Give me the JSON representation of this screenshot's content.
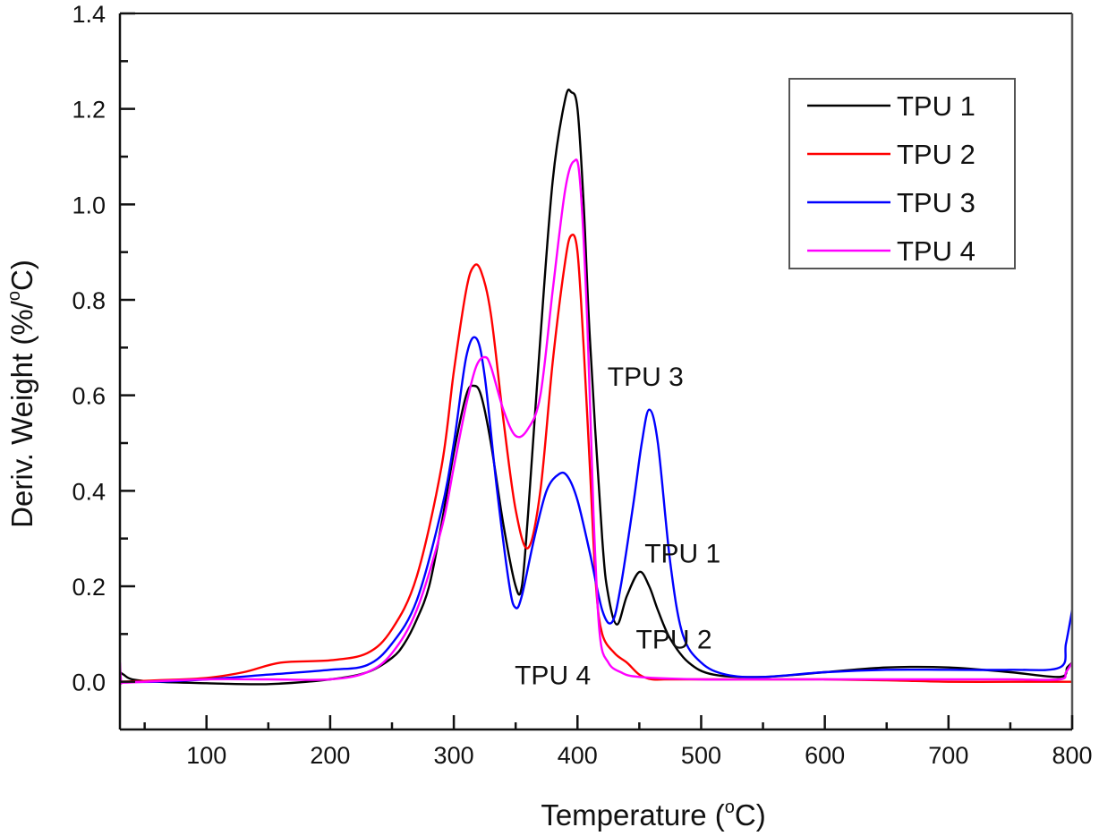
{
  "chart_data": {
    "type": "line",
    "title": "",
    "xlabel": "Temperature (°C)",
    "xlabel_parts": {
      "main": "Temperature (",
      "sup": "o",
      "end": "C)"
    },
    "ylabel": "Deriv. Weight (%/°C)",
    "ylabel_parts": {
      "main": "Deriv. Weight (%/",
      "sup": "o",
      "end": "C)"
    },
    "xlim": [
      30,
      800
    ],
    "ylim": [
      -0.1,
      1.4
    ],
    "xticks": [
      100,
      200,
      300,
      400,
      500,
      600,
      700,
      800
    ],
    "xtick_labels": [
      "100",
      "200",
      "300",
      "400",
      "500",
      "600",
      "700",
      "800"
    ],
    "xminor": [
      50,
      150,
      250,
      350,
      450,
      550,
      650,
      750
    ],
    "yticks": [
      0.0,
      0.2,
      0.4,
      0.6,
      0.8,
      1.0,
      1.2,
      1.4
    ],
    "ytick_labels": [
      "0.0",
      "0.2",
      "0.4",
      "0.6",
      "0.8",
      "1.0",
      "1.2",
      "1.4"
    ],
    "yminor": [
      0.1,
      0.3,
      0.5,
      0.7,
      0.9,
      1.1,
      1.3
    ],
    "grid": false,
    "legend_position": "top-right",
    "series": [
      {
        "name": "TPU 1",
        "color": "#000000",
        "x": [
          30,
          33,
          40,
          60,
          100,
          150,
          200,
          230,
          250,
          260,
          270,
          280,
          290,
          300,
          310,
          316,
          322,
          330,
          340,
          350,
          355,
          360,
          370,
          380,
          390,
          395,
          400,
          405,
          410,
          420,
          425,
          432,
          440,
          450,
          458,
          465,
          475,
          490,
          510,
          550,
          600,
          650,
          700,
          750,
          790,
          796,
          800
        ],
        "y": [
          0.02,
          0.015,
          0.005,
          0.0,
          -0.003,
          -0.005,
          0.005,
          0.02,
          0.05,
          0.08,
          0.13,
          0.2,
          0.33,
          0.48,
          0.6,
          0.62,
          0.6,
          0.5,
          0.33,
          0.2,
          0.2,
          0.35,
          0.72,
          1.05,
          1.22,
          1.235,
          1.2,
          1.0,
          0.72,
          0.3,
          0.18,
          0.12,
          0.18,
          0.23,
          0.2,
          0.15,
          0.09,
          0.04,
          0.015,
          0.01,
          0.02,
          0.03,
          0.03,
          0.02,
          0.01,
          0.03,
          0.04
        ]
      },
      {
        "name": "TPU 2",
        "color": "#ff0000",
        "x": [
          30,
          60,
          100,
          130,
          160,
          200,
          230,
          250,
          270,
          290,
          300,
          310,
          316,
          322,
          330,
          340,
          350,
          360,
          370,
          380,
          390,
          395,
          400,
          405,
          410,
          415,
          420,
          430,
          440,
          450,
          460,
          470,
          500,
          550,
          600,
          650,
          700,
          750,
          800
        ],
        "y": [
          0.0,
          0.003,
          0.008,
          0.02,
          0.04,
          0.045,
          0.06,
          0.11,
          0.22,
          0.45,
          0.65,
          0.82,
          0.87,
          0.86,
          0.77,
          0.55,
          0.36,
          0.28,
          0.4,
          0.67,
          0.88,
          0.935,
          0.9,
          0.7,
          0.45,
          0.2,
          0.1,
          0.06,
          0.04,
          0.015,
          0.005,
          0.005,
          0.005,
          0.005,
          0.005,
          0.003,
          0.0,
          0.0,
          0.0
        ]
      },
      {
        "name": "TPU 3",
        "color": "#0000ff",
        "x": [
          30,
          60,
          100,
          150,
          200,
          230,
          250,
          270,
          290,
          300,
          310,
          318,
          325,
          335,
          345,
          350,
          355,
          365,
          375,
          385,
          392,
          400,
          410,
          420,
          428,
          435,
          445,
          452,
          458,
          465,
          475,
          485,
          500,
          520,
          550,
          600,
          650,
          700,
          750,
          790,
          795,
          800
        ],
        "y": [
          0.0,
          0.0,
          0.005,
          0.015,
          0.025,
          0.035,
          0.08,
          0.17,
          0.36,
          0.5,
          0.68,
          0.72,
          0.64,
          0.4,
          0.2,
          0.155,
          0.18,
          0.3,
          0.4,
          0.435,
          0.43,
          0.38,
          0.27,
          0.15,
          0.125,
          0.2,
          0.37,
          0.5,
          0.57,
          0.5,
          0.25,
          0.1,
          0.04,
          0.015,
          0.01,
          0.02,
          0.025,
          0.025,
          0.025,
          0.03,
          0.08,
          0.15
        ]
      },
      {
        "name": "TPU 4",
        "color": "#ff00ff",
        "x": [
          30,
          31,
          33,
          50,
          100,
          150,
          200,
          230,
          250,
          270,
          290,
          300,
          310,
          318,
          325,
          330,
          340,
          350,
          360,
          370,
          380,
          390,
          397,
          402,
          408,
          413,
          418,
          425,
          435,
          450,
          500,
          550,
          600,
          650,
          700,
          750,
          790,
          795,
          800
        ],
        "y": [
          0.04,
          0.0,
          -0.002,
          0.0,
          0.005,
          0.005,
          0.005,
          0.02,
          0.06,
          0.15,
          0.32,
          0.45,
          0.58,
          0.66,
          0.68,
          0.66,
          0.57,
          0.515,
          0.53,
          0.6,
          0.82,
          1.03,
          1.09,
          1.05,
          0.75,
          0.35,
          0.1,
          0.04,
          0.02,
          0.01,
          0.005,
          0.005,
          0.005,
          0.005,
          0.005,
          0.005,
          0.005,
          0.02,
          0.04
        ]
      }
    ],
    "annotations": [
      {
        "text": "TPU 3",
        "x": 455,
        "y": 0.62
      },
      {
        "text": "TPU 1",
        "x": 485,
        "y": 0.25
      },
      {
        "text": "TPU 2",
        "x": 478,
        "y": 0.07
      },
      {
        "text": "TPU 4",
        "x": 380,
        "y": -0.005
      }
    ]
  }
}
